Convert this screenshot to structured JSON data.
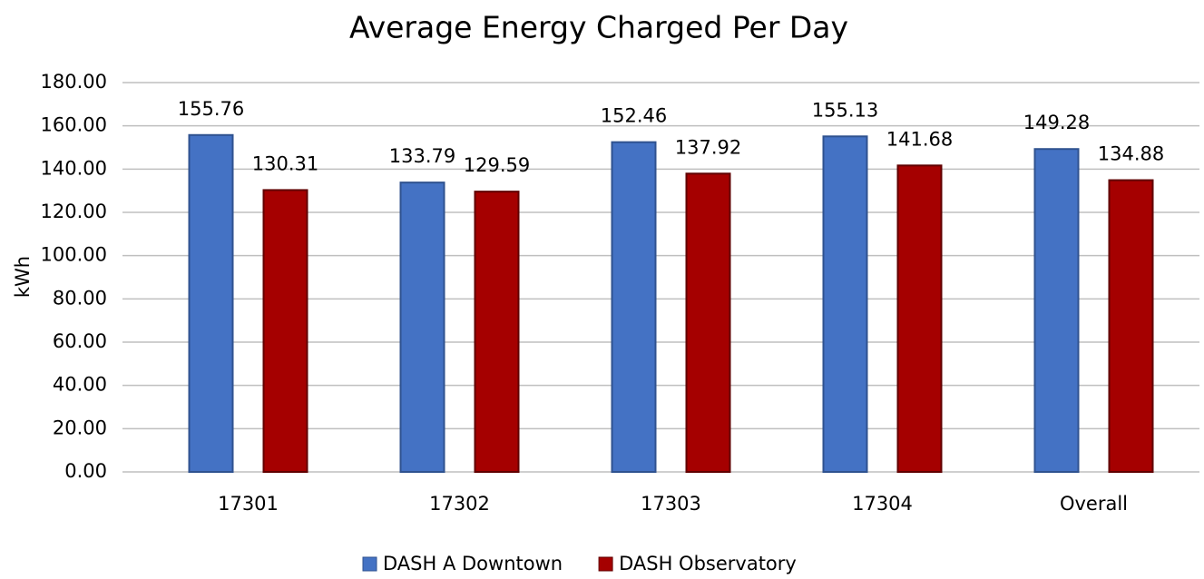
{
  "chart_data": {
    "type": "bar",
    "title": "Average Energy Charged Per Day",
    "y_label": "kWh",
    "categories": [
      "17301",
      "17302",
      "17303",
      "17304",
      "Overall"
    ],
    "series": [
      {
        "name": "DASH A Downtown",
        "color": "#4472c4",
        "values": [
          155.76,
          133.79,
          152.46,
          155.13,
          149.28
        ]
      },
      {
        "name": "DASH Observatory",
        "color": "#a50000",
        "values": [
          130.31,
          129.59,
          137.92,
          141.68,
          134.88
        ]
      }
    ],
    "ylim": [
      0,
      180
    ],
    "yticks": [
      {
        "value": 0,
        "label": "0.00"
      },
      {
        "value": 20,
        "label": "20.00"
      },
      {
        "value": 40,
        "label": "40.00"
      },
      {
        "value": 60,
        "label": "60.00"
      },
      {
        "value": 80,
        "label": "80.00"
      },
      {
        "value": 100,
        "label": "100.00"
      },
      {
        "value": 120,
        "label": "120.00"
      },
      {
        "value": 140,
        "label": "140.00"
      },
      {
        "value": 160,
        "label": "160.00"
      },
      {
        "value": 180,
        "label": "180.00"
      }
    ],
    "grid": true,
    "legend": "bottom"
  }
}
